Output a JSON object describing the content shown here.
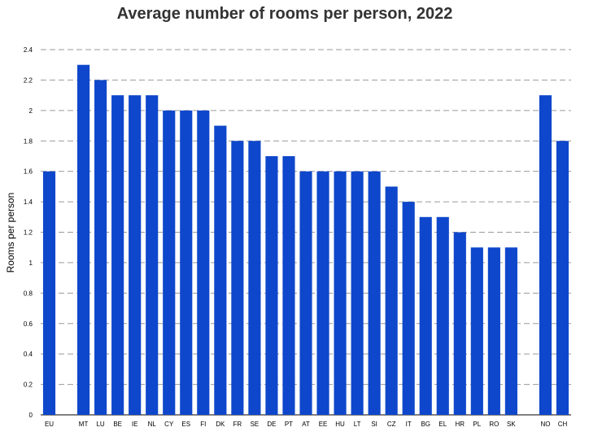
{
  "chart_data": {
    "type": "bar",
    "title": "Average number of rooms per person, 2022",
    "xlabel": "",
    "ylabel": "Rooms per person",
    "ylim": [
      0,
      2.4
    ],
    "yticks": [
      "0",
      "0.2",
      "0.4",
      "0.6",
      "0.8",
      "1",
      "1.2",
      "1.4",
      "1.6",
      "1.8",
      "2",
      "2.2",
      "2.4"
    ],
    "grid": true,
    "legend": "none",
    "color": "#0e47cb",
    "categories": [
      "EU",
      "",
      "MT",
      "LU",
      "BE",
      "IE",
      "NL",
      "CY",
      "ES",
      "FI",
      "DK",
      "FR",
      "SE",
      "DE",
      "PT",
      "AT",
      "EE",
      "HU",
      "LT",
      "SI",
      "CZ",
      "IT",
      "BG",
      "EL",
      "HR",
      "PL",
      "RO",
      "SK",
      "",
      "NO",
      "CH"
    ],
    "values": [
      1.6,
      null,
      2.3,
      2.2,
      2.1,
      2.1,
      2.1,
      2.0,
      2.0,
      2.0,
      1.9,
      1.8,
      1.8,
      1.7,
      1.7,
      1.6,
      1.6,
      1.6,
      1.6,
      1.6,
      1.5,
      1.4,
      1.3,
      1.3,
      1.2,
      1.1,
      1.1,
      1.1,
      null,
      2.1,
      1.8
    ]
  }
}
